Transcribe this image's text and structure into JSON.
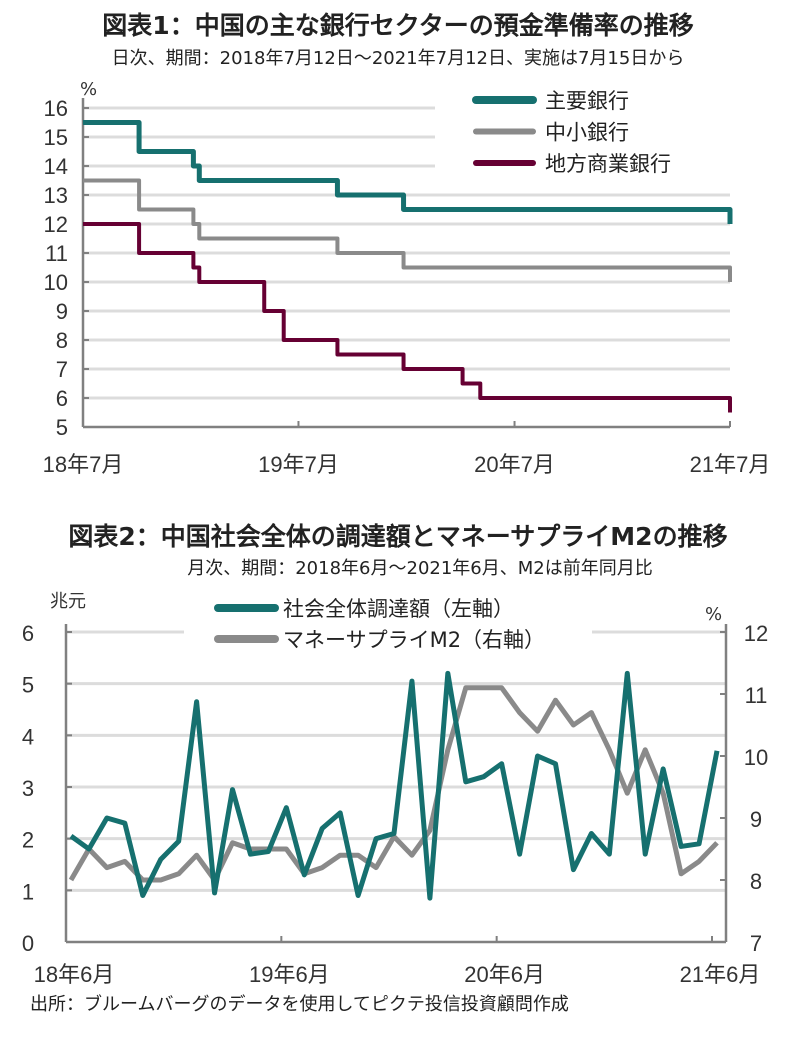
{
  "source": "出所：ブルームバーグのデータを使用してピクテ投信投資顧問作成",
  "chart_data": [
    {
      "type": "line",
      "step": true,
      "title": "図表1：中国の主な銀行セクターの預金準備率の推移",
      "subtitle": "日次、期間：2018年7月12日～2021年7月12日、実施は7月15日から",
      "ylabel": "%",
      "ylim": [
        5,
        16
      ],
      "yticks": [
        "16",
        "15",
        "14",
        "13",
        "12",
        "11",
        "10",
        "9",
        "8",
        "7",
        "6",
        "5"
      ],
      "xlim": [
        "2018-07-12",
        "2021-07-12"
      ],
      "xticks": [
        {
          "date": "2018-07-12",
          "label": "18年7月"
        },
        {
          "date": "2019-07-12",
          "label": "19年7月"
        },
        {
          "date": "2020-07-12",
          "label": "20年7月"
        },
        {
          "date": "2021-07-12",
          "label": "21年7月"
        }
      ],
      "grid": true,
      "legend": "top-right",
      "series": [
        {
          "name": "主要銀行",
          "color": "#16706f",
          "steps": [
            [
              "2018-07-12",
              15.5
            ],
            [
              "2018-10-15",
              14.5
            ],
            [
              "2019-01-15",
              14.0
            ],
            [
              "2019-01-25",
              13.5
            ],
            [
              "2019-09-16",
              13.0
            ],
            [
              "2020-01-06",
              12.5
            ],
            [
              "2021-07-12",
              12.0
            ]
          ]
        },
        {
          "name": "中小銀行",
          "color": "#8a8a8a",
          "steps": [
            [
              "2018-07-12",
              13.5
            ],
            [
              "2018-10-15",
              12.5
            ],
            [
              "2019-01-15",
              12.0
            ],
            [
              "2019-01-25",
              11.5
            ],
            [
              "2019-09-16",
              11.0
            ],
            [
              "2020-01-06",
              10.5
            ],
            [
              "2021-07-12",
              10.0
            ]
          ]
        },
        {
          "name": "地方商業銀行",
          "color": "#660033",
          "steps": [
            [
              "2018-07-12",
              12.0
            ],
            [
              "2018-10-15",
              11.0
            ],
            [
              "2019-01-15",
              10.5
            ],
            [
              "2019-01-25",
              10.0
            ],
            [
              "2019-05-15",
              9.0
            ],
            [
              "2019-06-17",
              8.0
            ],
            [
              "2019-09-16",
              7.5
            ],
            [
              "2020-01-06",
              7.0
            ],
            [
              "2020-04-15",
              6.5
            ],
            [
              "2020-05-15",
              6.0
            ],
            [
              "2021-07-12",
              5.5
            ]
          ]
        }
      ]
    },
    {
      "type": "line",
      "title": "図表2：中国社会全体の調達額とマネーサプライM2の推移",
      "subtitle": "月次、期間：2018年6月～2021年6月、M2は前年同月比",
      "ylabel_left": "兆元",
      "ylabel_right": "%",
      "ylim_left": [
        0,
        6
      ],
      "ylim_right": [
        7,
        12
      ],
      "yticks_left": [
        "6",
        "5",
        "4",
        "3",
        "2",
        "1",
        "0"
      ],
      "yticks_right": [
        "12",
        "11",
        "10",
        "9",
        "8",
        "7"
      ],
      "x": [
        "2018-06",
        "2018-07",
        "2018-08",
        "2018-09",
        "2018-10",
        "2018-11",
        "2018-12",
        "2019-01",
        "2019-02",
        "2019-03",
        "2019-04",
        "2019-05",
        "2019-06",
        "2019-07",
        "2019-08",
        "2019-09",
        "2019-10",
        "2019-11",
        "2019-12",
        "2020-01",
        "2020-02",
        "2020-03",
        "2020-04",
        "2020-05",
        "2020-06",
        "2020-07",
        "2020-08",
        "2020-09",
        "2020-10",
        "2020-11",
        "2020-12",
        "2021-01",
        "2021-02",
        "2021-03",
        "2021-04",
        "2021-05",
        "2021-06"
      ],
      "xticks": [
        {
          "index": 0,
          "label": "18年6月"
        },
        {
          "index": 12,
          "label": "19年6月"
        },
        {
          "index": 24,
          "label": "20年6月"
        },
        {
          "index": 36,
          "label": "21年6月"
        }
      ],
      "grid": true,
      "legend": "top-center",
      "series": [
        {
          "name": "社会全体調達額（左軸）",
          "axis": "left",
          "color": "#16706f",
          "values": [
            2.05,
            1.8,
            2.4,
            2.3,
            0.9,
            1.6,
            1.95,
            4.65,
            0.95,
            2.95,
            1.7,
            1.75,
            2.6,
            1.3,
            2.2,
            2.5,
            0.9,
            2.0,
            2.1,
            5.05,
            0.85,
            5.2,
            3.1,
            3.2,
            3.45,
            1.7,
            3.6,
            3.45,
            1.4,
            2.1,
            1.7,
            5.2,
            1.7,
            3.35,
            1.85,
            1.9,
            3.7
          ]
        },
        {
          "name": "マネーサプライM2（右軸）",
          "axis": "right",
          "color": "#8a8a8a",
          "values": [
            8.0,
            8.5,
            8.2,
            8.3,
            8.0,
            8.0,
            8.1,
            8.4,
            8.0,
            8.6,
            8.5,
            8.5,
            8.5,
            8.1,
            8.2,
            8.4,
            8.4,
            8.2,
            8.7,
            8.4,
            8.8,
            10.1,
            11.1,
            11.1,
            11.1,
            10.7,
            10.4,
            10.9,
            10.5,
            10.7,
            10.1,
            9.4,
            10.1,
            9.4,
            8.1,
            8.3,
            8.6
          ]
        }
      ]
    }
  ]
}
